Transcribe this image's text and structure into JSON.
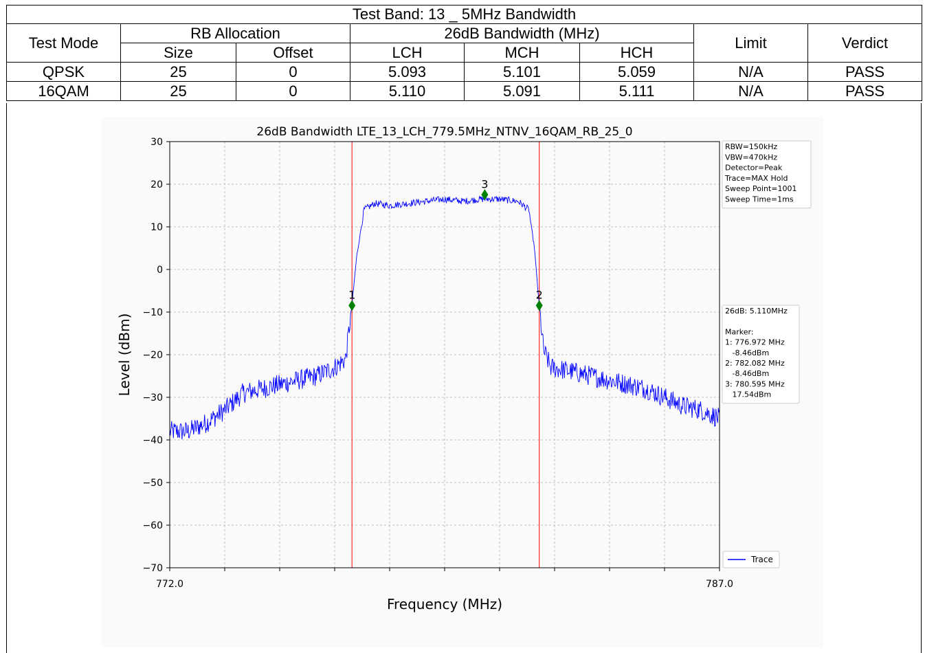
{
  "table": {
    "title": "Test Band: 13 _ 5MHz Bandwidth",
    "headers": {
      "test_mode": "Test Mode",
      "rb_allocation": "RB Allocation",
      "bandwidth": "26dB Bandwidth (MHz)",
      "limit": "Limit",
      "verdict": "Verdict",
      "size": "Size",
      "offset": "Offset",
      "lch": "LCH",
      "mch": "MCH",
      "hch": "HCH"
    },
    "rows": [
      {
        "mode": "QPSK",
        "size": "25",
        "offset": "0",
        "lch": "5.093",
        "mch": "5.101",
        "hch": "5.059",
        "limit": "N/A",
        "verdict": "PASS"
      },
      {
        "mode": "16QAM",
        "size": "25",
        "offset": "0",
        "lch": "5.110",
        "mch": "5.091",
        "hch": "5.111",
        "limit": "N/A",
        "verdict": "PASS"
      }
    ]
  },
  "chart_data": {
    "type": "line",
    "title": "26dB Bandwidth LTE_13_LCH_779.5MHz_NTNV_16QAM_RB_25_0",
    "xlabel": "Frequency (MHz)",
    "ylabel": "Level (dBm)",
    "xlim": [
      772.0,
      787.0
    ],
    "ylim": [
      -70,
      30
    ],
    "x_tick_labels": [
      "772.0",
      "787.0"
    ],
    "y_ticks": [
      30,
      20,
      10,
      0,
      -10,
      -20,
      -30,
      -40,
      -50,
      -60,
      -70
    ],
    "y_tick_labels": [
      "30",
      "20",
      "10",
      "0",
      "−10",
      "−20",
      "−30",
      "−40",
      "−50",
      "−60",
      "−70"
    ],
    "grid": true,
    "trace_color": "#0000ff",
    "marker_line_color": "#ff0000",
    "marker_color": "#008000",
    "series": [
      {
        "name": "Trace",
        "x": [
          772.0,
          772.5,
          773.0,
          773.5,
          774.0,
          774.5,
          775.0,
          775.5,
          776.0,
          776.5,
          776.8,
          776.97,
          777.1,
          777.3,
          777.6,
          778.0,
          778.5,
          779.0,
          779.5,
          780.0,
          780.5,
          781.0,
          781.5,
          781.8,
          781.95,
          782.08,
          782.2,
          782.4,
          783.0,
          783.5,
          784.0,
          784.5,
          785.0,
          785.5,
          786.0,
          786.5,
          787.0
        ],
        "y": [
          -38,
          -38,
          -36,
          -33,
          -29,
          -28,
          -27,
          -26,
          -25,
          -23,
          -21,
          -8.46,
          3,
          14,
          15.5,
          15,
          15.5,
          16,
          16.5,
          16,
          16.5,
          16.5,
          16,
          14,
          5,
          -8.46,
          -19,
          -23,
          -24,
          -25,
          -26,
          -27,
          -28,
          -30,
          -32,
          -33,
          -35
        ]
      }
    ],
    "markers": [
      {
        "label": "1",
        "x": 776.972,
        "y": -8.46
      },
      {
        "label": "2",
        "x": 782.082,
        "y": -8.46
      },
      {
        "label": "3",
        "x": 780.595,
        "y": 17.54
      }
    ],
    "marker_lines_x": [
      776.972,
      782.082
    ],
    "settings_box": [
      "RBW=150kHz",
      "VBW=470kHz",
      "Detector=Peak",
      "Trace=MAX Hold",
      "Sweep Point=1001",
      "Sweep Time=1ms"
    ],
    "result_box": [
      "26dB: 5.110MHz"
    ],
    "marker_box": [
      "Marker:",
      "1: 776.972 MHz",
      "   -8.46dBm",
      "2: 782.082 MHz",
      "   -8.46dBm",
      "3: 780.595 MHz",
      "   17.54dBm"
    ],
    "legend": {
      "label": "Trace",
      "position": "bottom-right"
    }
  }
}
